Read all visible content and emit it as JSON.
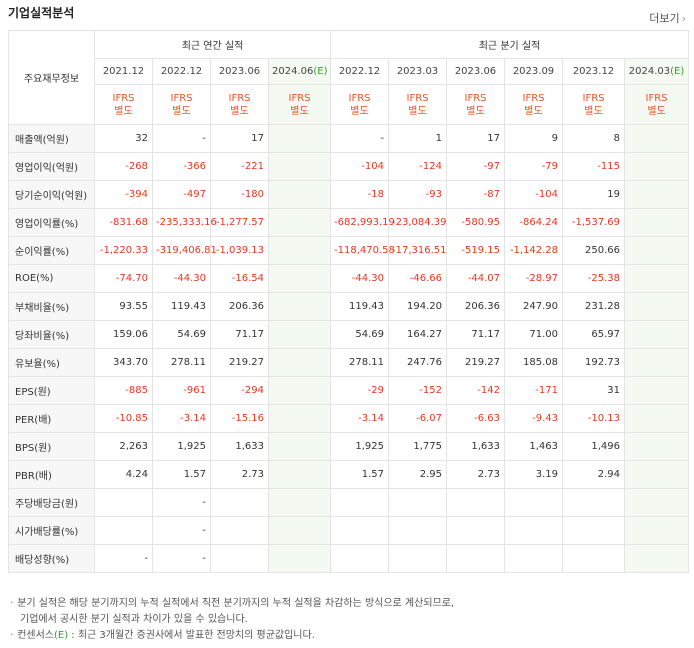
{
  "title": "기업실적분석",
  "more_label": "더보기",
  "more_chevron": "›",
  "table": {
    "row_header": "주요재무정보",
    "annual_header": "최근 연간 실적",
    "quarter_header": "최근 분기 실적",
    "annual_periods": [
      "2021.12",
      "2022.12",
      "2023.06",
      "2024.06"
    ],
    "quarter_periods": [
      "2022.12",
      "2023.03",
      "2023.06",
      "2023.09",
      "2023.12",
      "2024.03"
    ],
    "estimate_mark": "(E)",
    "std_line1": "IFRS",
    "std_line2": "별도",
    "rows": [
      {
        "label": "매출액(억원)",
        "annual": [
          "32",
          "-",
          "17",
          ""
        ],
        "quarter": [
          "-",
          "1",
          "17",
          "9",
          "8",
          ""
        ]
      },
      {
        "label": "영업이익(억원)",
        "annual": [
          "-268",
          "-366",
          "-221",
          ""
        ],
        "quarter": [
          "-104",
          "-124",
          "-97",
          "-79",
          "-115",
          ""
        ]
      },
      {
        "label": "당기순이익(억원)",
        "annual": [
          "-394",
          "-497",
          "-180",
          ""
        ],
        "quarter": [
          "-18",
          "-93",
          "-87",
          "-104",
          "19",
          ""
        ]
      },
      {
        "label": "영업이익률(%)",
        "annual": [
          "-831.68",
          "-235,333.16",
          "-1,277.57",
          ""
        ],
        "quarter": [
          "-682,993.19",
          "-23,084.39",
          "-580.95",
          "-864.24",
          "-1,537.69",
          ""
        ]
      },
      {
        "label": "순이익률(%)",
        "annual": [
          "-1,220.33",
          "-319,406.81",
          "-1,039.13",
          ""
        ],
        "quarter": [
          "-118,470.58",
          "-17,316.51",
          "-519.15",
          "-1,142.28",
          "250.66",
          ""
        ]
      },
      {
        "label": "ROE(%)",
        "annual": [
          "-74.70",
          "-44.30",
          "-16.54",
          ""
        ],
        "quarter": [
          "-44.30",
          "-46.66",
          "-44.07",
          "-28.97",
          "-25.38",
          ""
        ]
      },
      {
        "label": "부채비율(%)",
        "annual": [
          "93.55",
          "119.43",
          "206.36",
          ""
        ],
        "quarter": [
          "119.43",
          "194.20",
          "206.36",
          "247.90",
          "231.28",
          ""
        ]
      },
      {
        "label": "당좌비율(%)",
        "annual": [
          "159.06",
          "54.69",
          "71.17",
          ""
        ],
        "quarter": [
          "54.69",
          "164.27",
          "71.17",
          "71.00",
          "65.97",
          ""
        ]
      },
      {
        "label": "유보율(%)",
        "annual": [
          "343.70",
          "278.11",
          "219.27",
          ""
        ],
        "quarter": [
          "278.11",
          "247.76",
          "219.27",
          "185.08",
          "192.73",
          ""
        ]
      },
      {
        "label": "EPS(원)",
        "annual": [
          "-885",
          "-961",
          "-294",
          ""
        ],
        "quarter": [
          "-29",
          "-152",
          "-142",
          "-171",
          "31",
          ""
        ]
      },
      {
        "label": "PER(배)",
        "annual": [
          "-10.85",
          "-3.14",
          "-15.16",
          ""
        ],
        "quarter": [
          "-3.14",
          "-6.07",
          "-6.63",
          "-9.43",
          "-10.13",
          ""
        ]
      },
      {
        "label": "BPS(원)",
        "annual": [
          "2,263",
          "1,925",
          "1,633",
          ""
        ],
        "quarter": [
          "1,925",
          "1,775",
          "1,633",
          "1,463",
          "1,496",
          ""
        ]
      },
      {
        "label": "PBR(배)",
        "annual": [
          "4.24",
          "1.57",
          "2.73",
          ""
        ],
        "quarter": [
          "1.57",
          "2.95",
          "2.73",
          "3.19",
          "2.94",
          ""
        ]
      },
      {
        "label": "주당배당금(원)",
        "annual": [
          "",
          "-",
          "",
          ""
        ],
        "quarter": [
          "",
          "",
          "",
          "",
          "",
          ""
        ]
      },
      {
        "label": "시가배당률(%)",
        "annual": [
          "",
          "-",
          "",
          ""
        ],
        "quarter": [
          "",
          "",
          "",
          "",
          "",
          ""
        ]
      },
      {
        "label": "배당성향(%)",
        "annual": [
          "-",
          "-",
          "",
          ""
        ],
        "quarter": [
          "",
          "",
          "",
          "",
          "",
          ""
        ]
      }
    ]
  },
  "footnotes": {
    "dot": "·",
    "line1": "분기 실적은 해당 분기까지의 누적 실적에서 직전 분기까지의 누적 실적을 차감하는 방식으로 계산되므로,",
    "line2": "기업에서 공시한 분기 실적과 차이가 있을 수 있습니다.",
    "line3_pre": "컨센서스",
    "line3_e": "(E)",
    "line3_post": " : 최근 3개월간 증권사에서 발표한 전망치의 평균값입니다."
  },
  "colors": {
    "negative": "#e03a1f",
    "ifrs": "#e8542a",
    "estimate": "#3c9a37",
    "estimate_bg": "#f4f9f1"
  }
}
